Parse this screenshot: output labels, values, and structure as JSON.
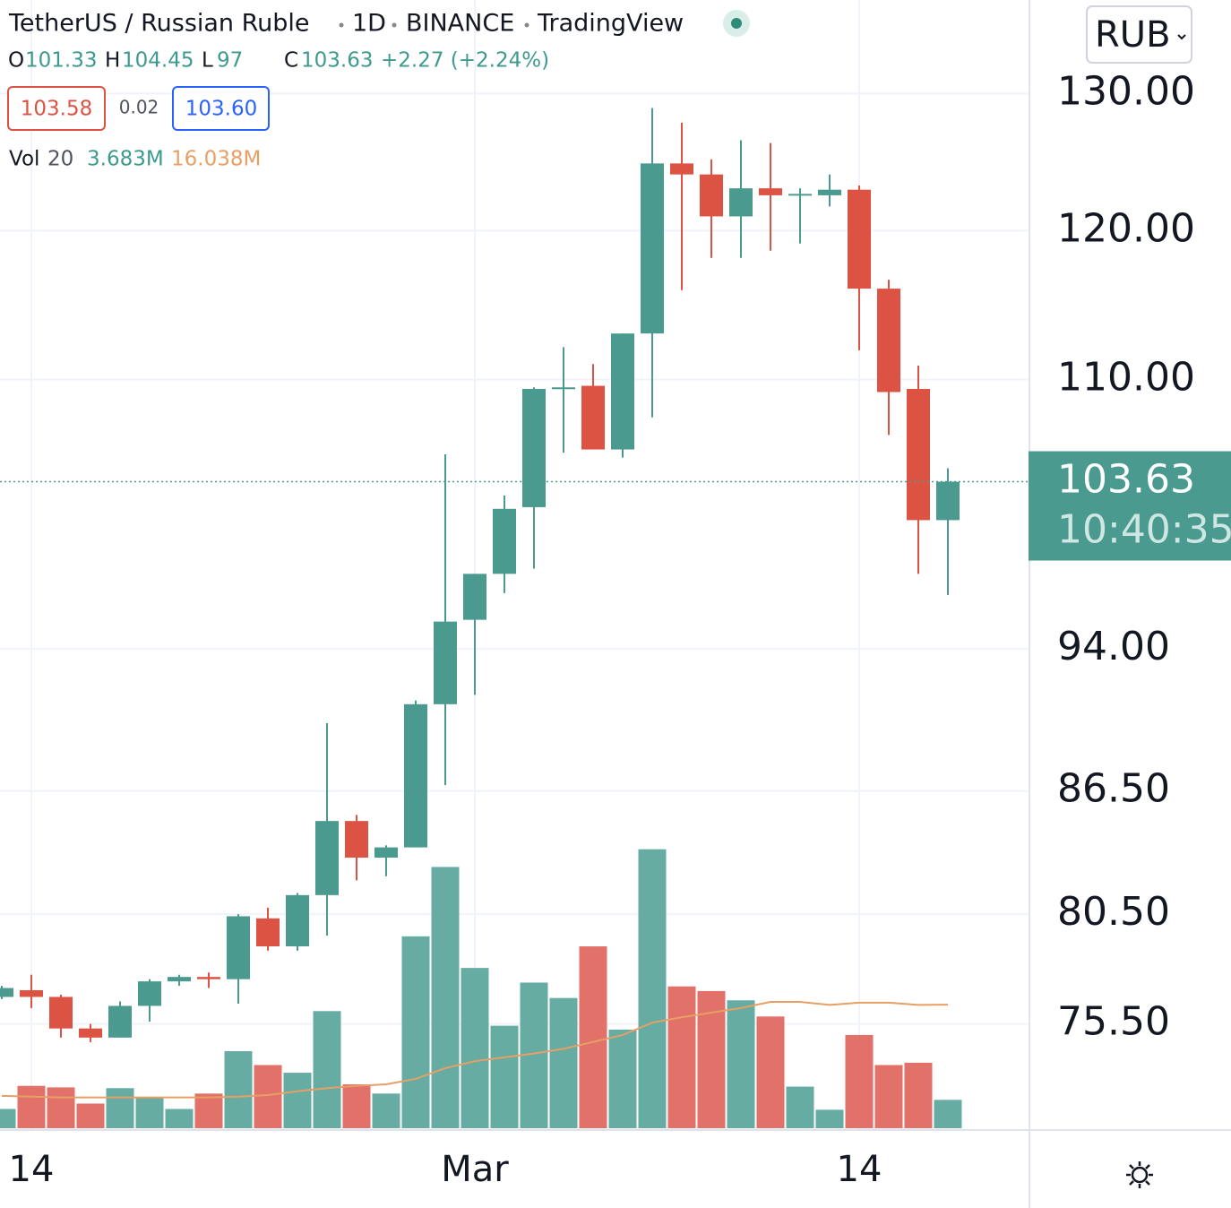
{
  "header": {
    "symbol": "TetherUS / Russian Ruble",
    "interval": "1D",
    "exchange": "BINANCE",
    "source": "TradingView",
    "open_label": "O",
    "high_label": "H",
    "low_label": "L",
    "close_label": "C",
    "change": "+2.27 (+2.24%)",
    "bid": "103.58",
    "spread": "0.02",
    "ask": "103.60",
    "vol_label": "Vol",
    "vol_length": 20,
    "vol_value": "3.683M",
    "vol_ma_value": "16.038M",
    "currency": "RUB",
    "countdown": "10:40:35"
  },
  "chart_data": {
    "type": "candlestick",
    "log_scale": true,
    "grid": true,
    "categories": [
      null,
      "14",
      null,
      null,
      null,
      null,
      null,
      null,
      null,
      null,
      null,
      null,
      null,
      null,
      null,
      null,
      "Mar",
      null,
      null,
      null,
      null,
      null,
      null,
      null,
      null,
      null,
      null,
      null,
      null,
      "14",
      null,
      null,
      null
    ],
    "open": [
      76.7,
      77.0,
      76.7,
      75.3,
      74.9,
      76.3,
      77.4,
      77.6,
      77.5,
      80.3,
      79.0,
      81.4,
      85.0,
      83.2,
      83.7,
      91.0,
      95.6,
      98.2,
      102.1,
      109.4,
      109.6,
      105.6,
      113.0,
      124.8,
      124.0,
      121.0,
      123.0,
      122.5,
      122.5,
      122.9,
      116.0,
      109.4,
      101.33
    ],
    "high": [
      77.2,
      77.7,
      76.8,
      75.5,
      76.5,
      77.5,
      77.7,
      77.8,
      80.5,
      80.8,
      81.5,
      90.0,
      85.3,
      83.8,
      91.2,
      105.3,
      98.2,
      102.8,
      109.5,
      112.1,
      111.0,
      113.0,
      128.9,
      127.8,
      125.1,
      126.5,
      126.3,
      123.0,
      124.0,
      123.2,
      116.6,
      110.9,
      104.45
    ],
    "low": [
      76.6,
      76.2,
      74.9,
      74.7,
      74.9,
      75.6,
      77.2,
      77.1,
      76.4,
      78.8,
      78.8,
      79.5,
      82.1,
      82.3,
      83.7,
      86.8,
      91.5,
      97.1,
      98.5,
      105.4,
      105.6,
      105.1,
      107.6,
      115.9,
      118.1,
      118.1,
      118.6,
      119.1,
      121.7,
      111.9,
      106.5,
      98.2,
      97.0
    ],
    "close": [
      77.1,
      76.7,
      75.3,
      74.9,
      76.3,
      77.4,
      77.6,
      77.5,
      80.4,
      79.0,
      81.4,
      85.0,
      83.2,
      83.7,
      91.0,
      95.5,
      98.2,
      102.0,
      109.4,
      109.5,
      105.6,
      113.0,
      124.8,
      124.0,
      121.0,
      123.0,
      122.5,
      122.6,
      122.9,
      116.0,
      109.2,
      101.33,
      103.63
    ],
    "volume": [
      2.5,
      5.5,
      5.3,
      3.2,
      5.2,
      3.9,
      2.5,
      4.5,
      10.0,
      8.2,
      7.2,
      15.2,
      5.7,
      4.5,
      24.9,
      33.9,
      20.8,
      13.3,
      18.9,
      16.9,
      23.6,
      12.8,
      36.2,
      18.4,
      17.8,
      16.6,
      14.5,
      5.4,
      2.4,
      12.1,
      8.2,
      8.5,
      3.683
    ],
    "volume_ma": [
      4.2,
      4.1,
      4.0,
      4.0,
      4.0,
      4.0,
      4.0,
      4.0,
      4.1,
      4.3,
      4.8,
      5.2,
      5.5,
      5.7,
      6.4,
      7.8,
      8.7,
      9.2,
      9.7,
      10.3,
      11.2,
      12.1,
      13.7,
      14.4,
      15.0,
      15.6,
      16.4,
      16.4,
      16.0,
      16.3,
      16.3,
      16.0,
      16.038
    ],
    "up_color": "#4a9a8f",
    "down_color": "#dc5344",
    "volume_up_color": "#66aca3",
    "volume_down_color": "#e2716a",
    "volume_ma_color": "#e6a065",
    "ylim": [
      71.0,
      137.3
    ],
    "vlim": [
      0,
      40
    ],
    "yticks": [
      {
        "value": 130,
        "label": "130.00"
      },
      {
        "value": 120,
        "label": "120.00"
      },
      {
        "value": 110,
        "label": "110.00"
      },
      {
        "value": 94,
        "label": "94.00"
      },
      {
        "value": 86.5,
        "label": "86.50"
      },
      {
        "value": 80.5,
        "label": "80.50"
      },
      {
        "value": 75.5,
        "label": "75.50"
      }
    ]
  }
}
